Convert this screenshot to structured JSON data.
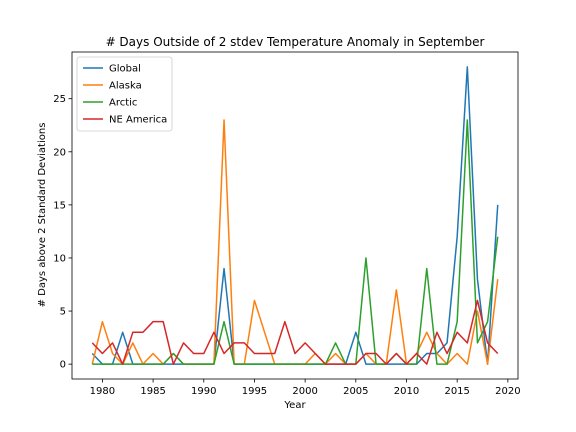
{
  "chart_data": {
    "type": "line",
    "title": "# Days Outside of 2 stdev Temperature Anomaly in September",
    "xlabel": "Year",
    "ylabel": "# Days above 2 Standard Deviations",
    "xlim": [
      1977,
      2021
    ],
    "ylim": [
      -1.4,
      29.4
    ],
    "xticks": [
      1980,
      1985,
      1990,
      1995,
      2000,
      2005,
      2010,
      2015,
      2020
    ],
    "yticks": [
      0,
      5,
      10,
      15,
      20,
      25
    ],
    "grid": false,
    "legend_position": "upper-left",
    "x": [
      1979,
      1980,
      1981,
      1982,
      1983,
      1984,
      1985,
      1986,
      1987,
      1988,
      1989,
      1990,
      1991,
      1992,
      1993,
      1994,
      1995,
      1996,
      1997,
      1998,
      1999,
      2000,
      2001,
      2002,
      2003,
      2004,
      2005,
      2006,
      2007,
      2008,
      2009,
      2010,
      2011,
      2012,
      2013,
      2014,
      2015,
      2016,
      2017,
      2018,
      2019
    ],
    "series": [
      {
        "name": "Global",
        "color": "#1f77b4",
        "values": [
          1,
          0,
          0,
          3,
          0,
          0,
          0,
          0,
          0,
          0,
          0,
          0,
          0,
          9,
          0,
          0,
          0,
          0,
          0,
          0,
          0,
          0,
          0,
          0,
          0,
          0,
          3,
          0,
          0,
          0,
          0,
          0,
          0,
          1,
          1,
          2,
          12,
          28,
          8,
          0,
          15
        ]
      },
      {
        "name": "Alaska",
        "color": "#ff7f0e",
        "values": [
          0,
          4,
          1,
          0,
          2,
          0,
          1,
          0,
          1,
          0,
          0,
          0,
          0,
          23,
          0,
          0,
          6,
          3,
          0,
          0,
          0,
          0,
          1,
          0,
          1,
          0,
          0,
          1,
          0,
          0,
          7,
          0,
          1,
          3,
          1,
          0,
          1,
          0,
          5,
          0,
          8
        ]
      },
      {
        "name": "Arctic",
        "color": "#2ca02c",
        "values": [
          0,
          0,
          0,
          0,
          0,
          0,
          0,
          0,
          1,
          0,
          0,
          0,
          0,
          4,
          0,
          0,
          0,
          0,
          0,
          0,
          0,
          0,
          0,
          0,
          2,
          0,
          0,
          10,
          0,
          0,
          1,
          0,
          0,
          9,
          0,
          0,
          4,
          23,
          2,
          4,
          12
        ]
      },
      {
        "name": "NE America",
        "color": "#d62728",
        "values": [
          2,
          1,
          2,
          0,
          3,
          3,
          4,
          4,
          0,
          2,
          1,
          1,
          3,
          1,
          2,
          2,
          1,
          1,
          1,
          4,
          1,
          2,
          1,
          0,
          0,
          0,
          0,
          1,
          1,
          0,
          1,
          0,
          1,
          0,
          3,
          1,
          3,
          2,
          6,
          2,
          1
        ]
      }
    ]
  }
}
